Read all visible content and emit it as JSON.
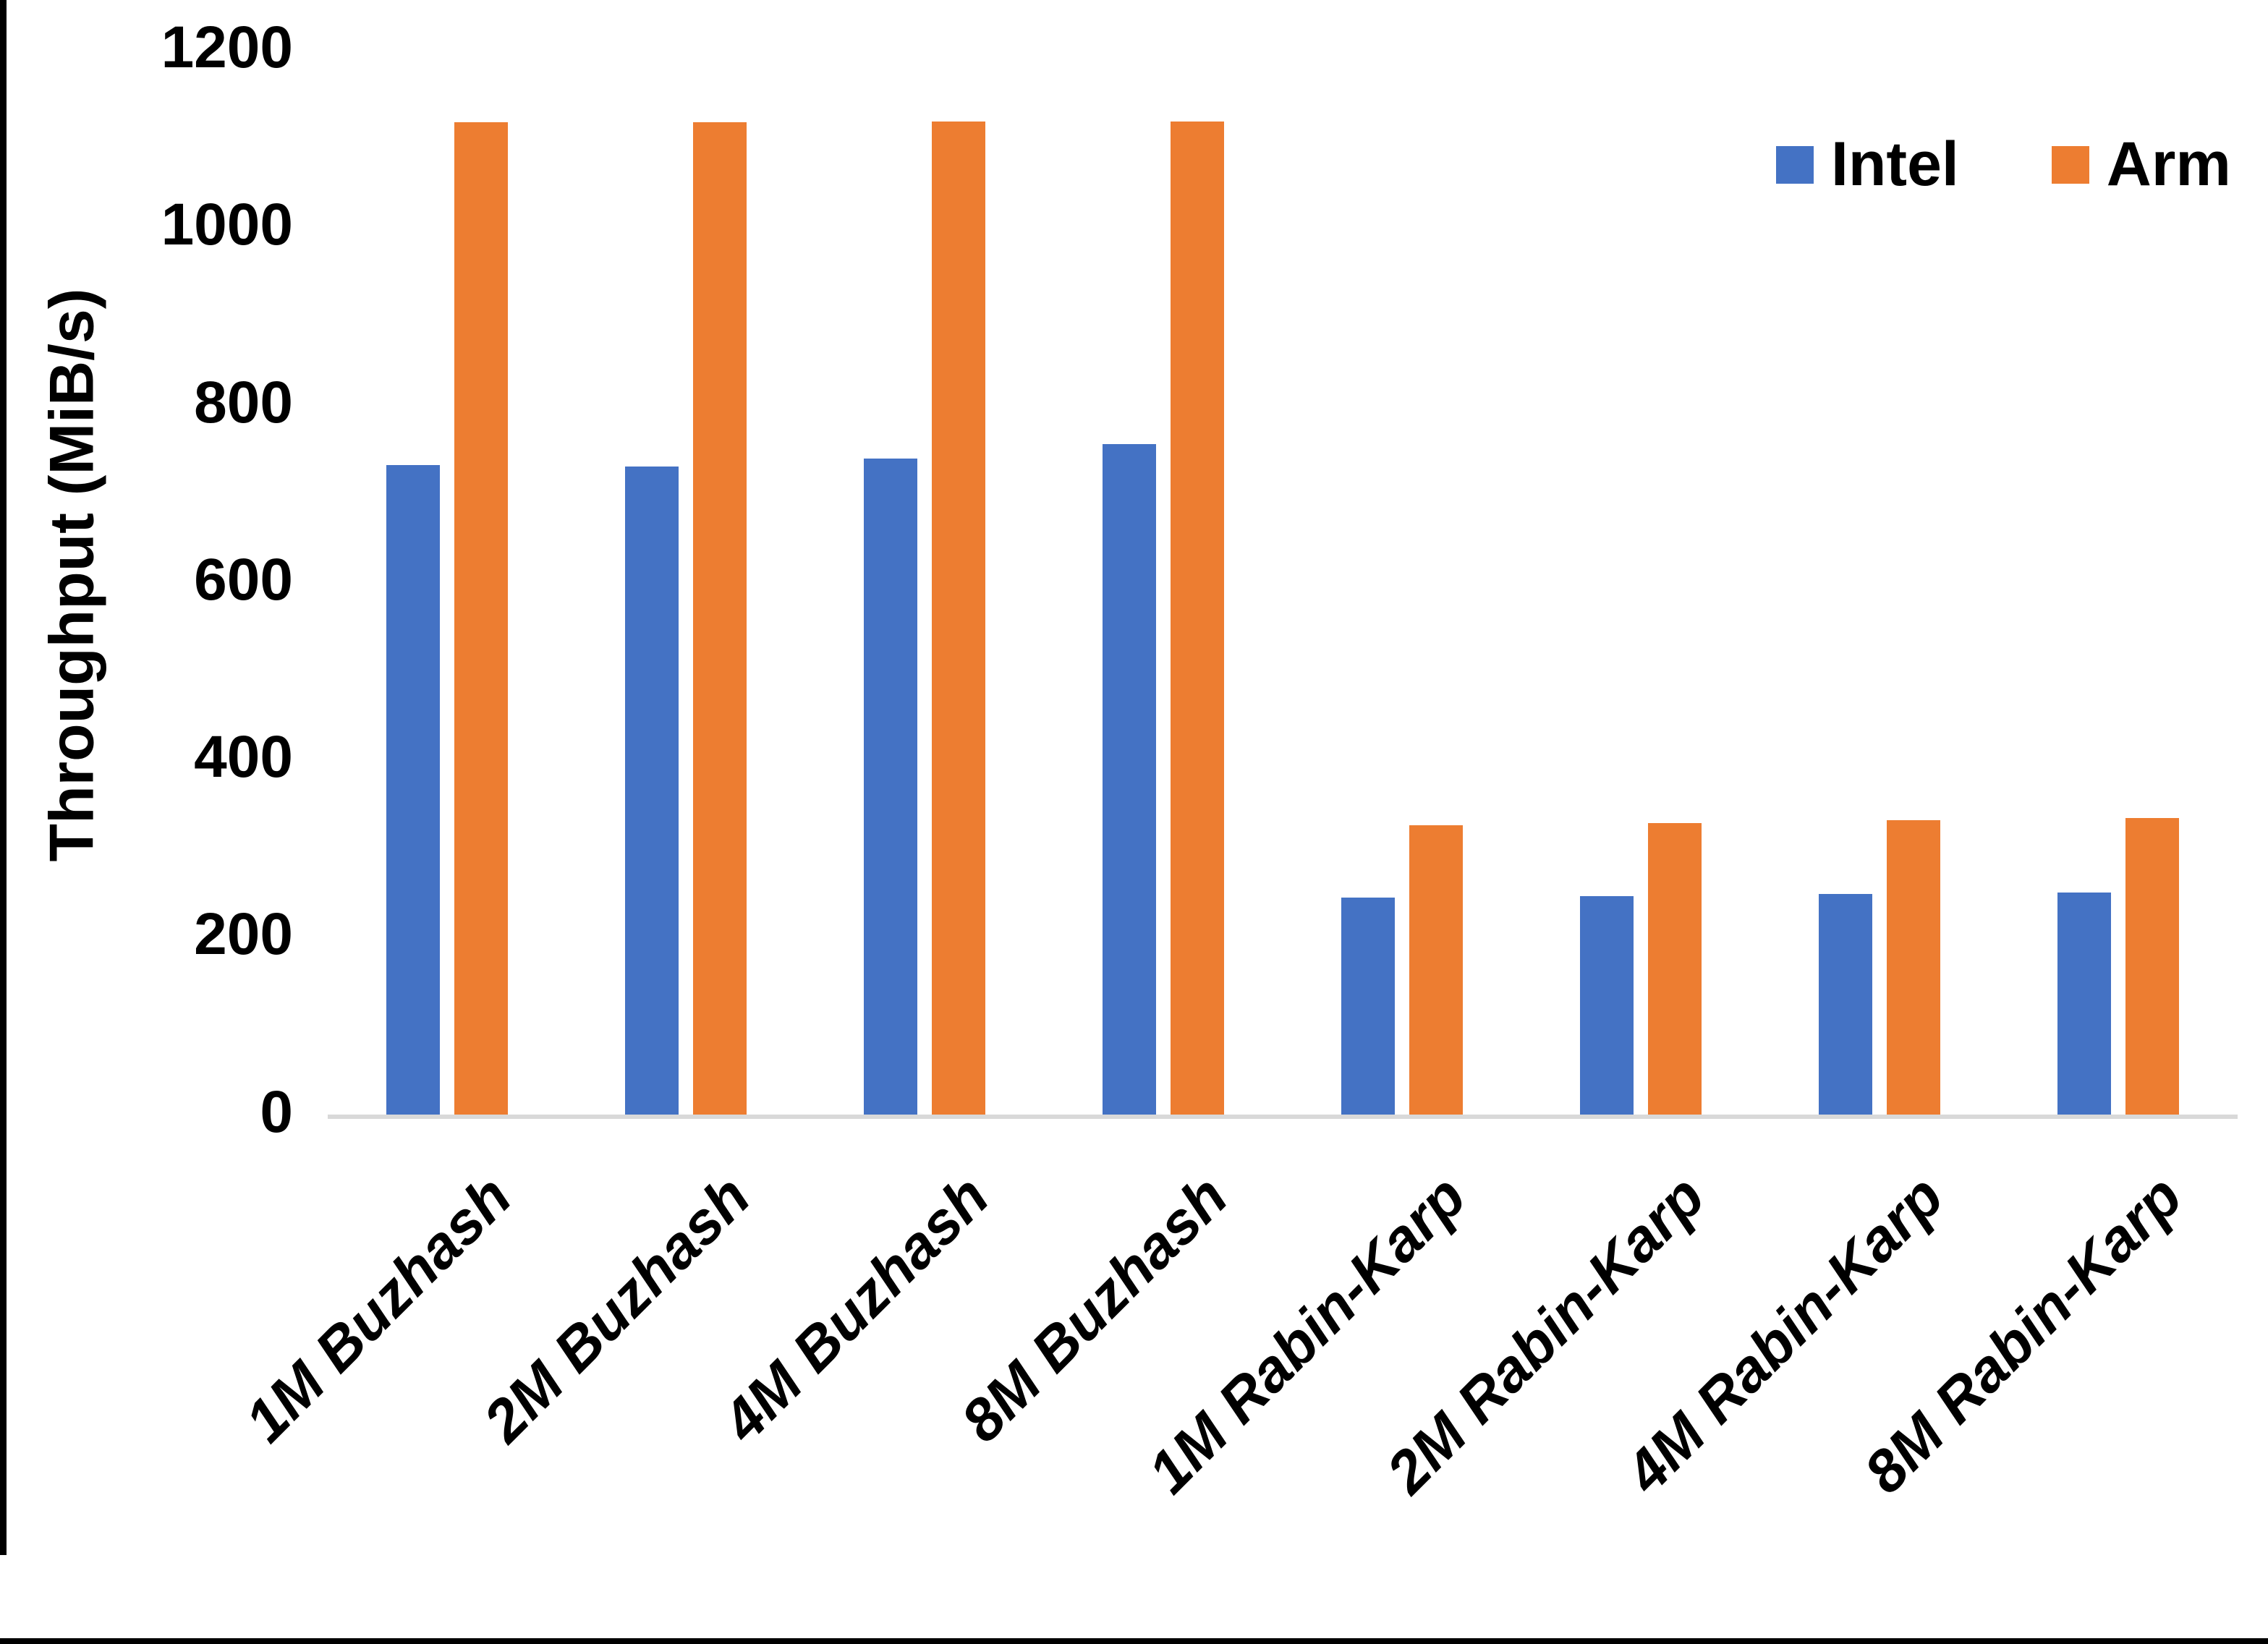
{
  "chart_data": {
    "type": "bar",
    "title": "",
    "xlabel": "",
    "ylabel": "Throughput (MiB/s)",
    "ylim": [
      0,
      1200
    ],
    "y_ticks": [
      0,
      200,
      400,
      600,
      800,
      1000,
      1200
    ],
    "grid": false,
    "legend_position": "top-right",
    "categories": [
      "1M Buzhash",
      "2M Buzhash",
      "4M Buzhash",
      "8M Buzhash",
      "1M Rabin-Karp",
      "2M Rabin-Karp",
      "4M Rabin-Karp",
      "8M Rabin-Karp"
    ],
    "series": [
      {
        "name": "Intel",
        "color": "#4472C4",
        "values": [
          732,
          731,
          740,
          756,
          245,
          246,
          249,
          250
        ]
      },
      {
        "name": "Arm",
        "color": "#ED7D31",
        "values": [
          1119,
          1119,
          1120,
          1120,
          326,
          329,
          332,
          334
        ]
      }
    ]
  },
  "layout_colors": {
    "axis_line": "#d9d9d9",
    "page_edge": "#000000",
    "background": "#ffffff"
  }
}
